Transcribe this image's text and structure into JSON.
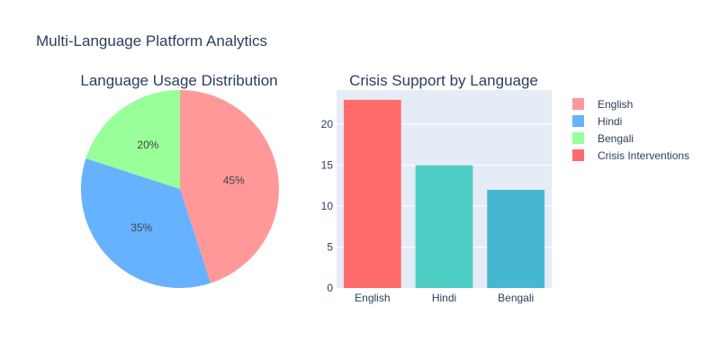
{
  "figure": {
    "title": "Multi-Language Platform Analytics"
  },
  "chart_data": [
    {
      "type": "pie",
      "title": "Language Usage Distribution",
      "labels": [
        "English",
        "Hindi",
        "Bengali"
      ],
      "values": [
        45,
        35,
        20
      ],
      "value_labels": [
        "45%",
        "35%",
        "20%"
      ],
      "colors": [
        "#FF9999",
        "#66B2FF",
        "#99FF99"
      ],
      "direction": "clockwise",
      "start_angle_deg": 90
    },
    {
      "type": "bar",
      "title": "Crisis Support by Language",
      "categories": [
        "English",
        "Hindi",
        "Bengali"
      ],
      "series": [
        {
          "name": "Crisis Interventions",
          "values": [
            23,
            15,
            12
          ]
        }
      ],
      "bar_colors": [
        "#FF6B6B",
        "#4ECDC4",
        "#45B7D1"
      ],
      "ylim": [
        0,
        24.2
      ],
      "yticks": [
        0,
        5,
        10,
        15,
        20
      ],
      "grid": true,
      "plot_background": "#E5ECF6"
    }
  ],
  "legend": {
    "placement": "right",
    "items": [
      {
        "label": "English",
        "color": "#FF9999"
      },
      {
        "label": "Hindi",
        "color": "#66B2FF"
      },
      {
        "label": "Bengali",
        "color": "#99FF99"
      },
      {
        "label": "Crisis Interventions",
        "color": "#FF6B6B"
      }
    ]
  }
}
